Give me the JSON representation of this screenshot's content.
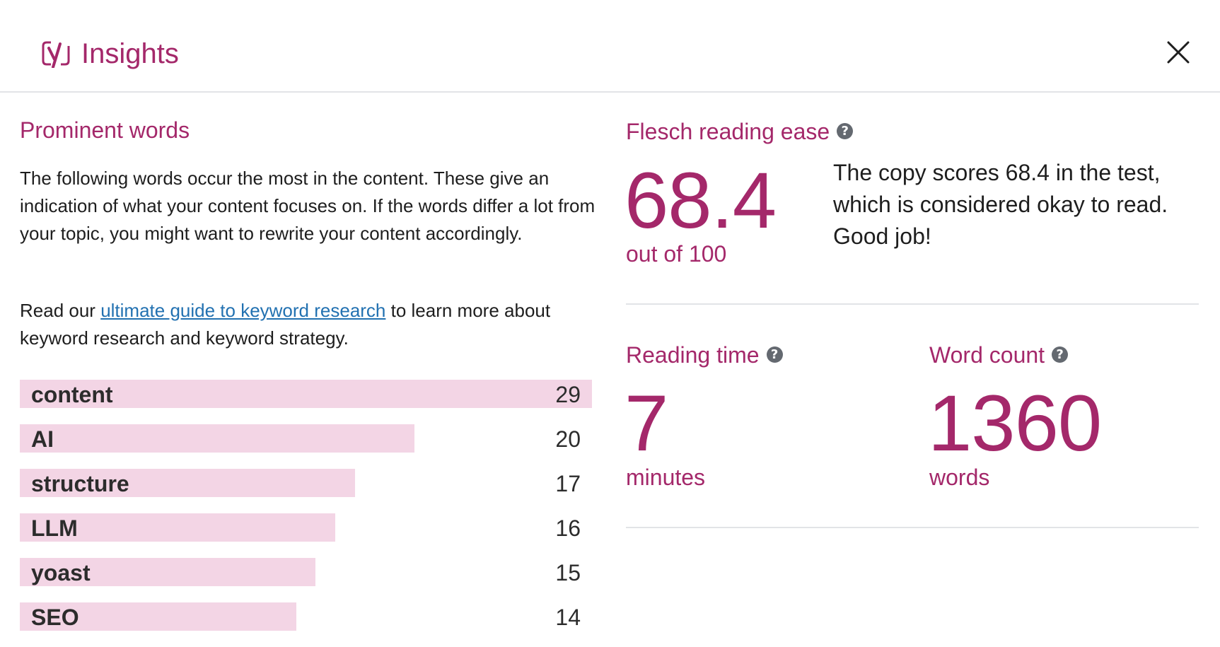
{
  "header": {
    "title": "Insights",
    "logo_icon": "yoast-logo-icon",
    "close_icon": "close-icon"
  },
  "prominent_words": {
    "heading": "Prominent words",
    "description": "The following words occur the most in the content. These give an indication of what your content focuses on. If the words differ a lot from your topic, you might want to rewrite your content accordingly.",
    "read_prefix": "Read our ",
    "read_link": "ultimate guide to keyword research",
    "read_suffix": " to learn more about keyword research and keyword strategy.",
    "items": [
      {
        "word": "content",
        "count": "29",
        "value": 29
      },
      {
        "word": "AI",
        "count": "20",
        "value": 20
      },
      {
        "word": "structure",
        "count": "17",
        "value": 17
      },
      {
        "word": "LLM",
        "count": "16",
        "value": 16
      },
      {
        "word": "yoast",
        "count": "15",
        "value": 15
      },
      {
        "word": "SEO",
        "count": "14",
        "value": 14
      }
    ],
    "bar_color": "#f3d5e5"
  },
  "flesch": {
    "heading": "Flesch reading ease",
    "score": "68.4",
    "out_of": "out of 100",
    "text": "The copy scores 68.4 in the test, which is considered okay to read. Good job!"
  },
  "reading_time": {
    "heading": "Reading time",
    "value": "7",
    "unit": "minutes"
  },
  "word_count": {
    "heading": "Word count",
    "value": "1360",
    "unit": "words"
  },
  "colors": {
    "accent": "#a4286a",
    "link": "#2271b1",
    "divider": "#e2e4e7"
  }
}
